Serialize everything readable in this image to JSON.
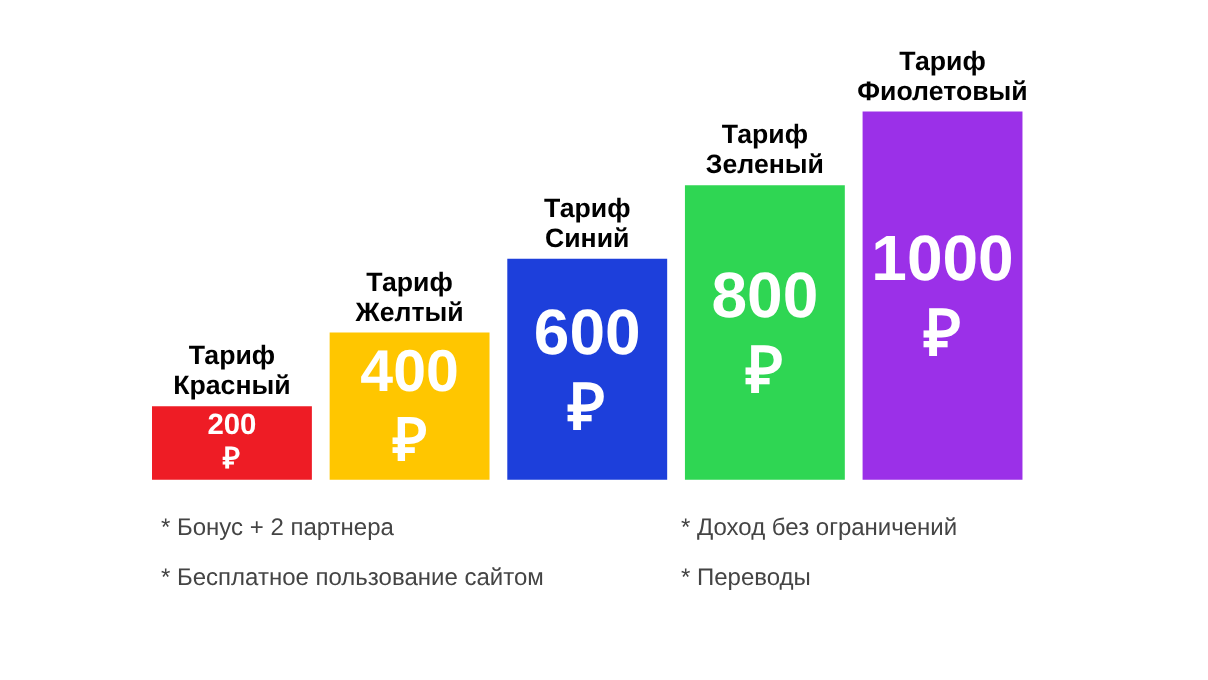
{
  "chart_data": {
    "type": "bar",
    "categories": [
      "Тариф\nКрасный",
      "Тариф\nЖелтый",
      "Тариф\nСиний",
      "Тариф\nЗеленый",
      "Тариф\nФиолетовый"
    ],
    "values": [
      200,
      400,
      600,
      800,
      1000
    ],
    "colors": [
      "#ee1c25",
      "#ffc600",
      "#1d3fdb",
      "#2fd653",
      "#9b30e8"
    ],
    "value_labels": [
      "200\n₽",
      "400\n₽",
      "600\n₽",
      "800\n₽",
      "1000\n₽"
    ],
    "ylim": [
      0,
      1300
    ],
    "tick_labels": false,
    "grid": false,
    "annotations": [
      "* Бонус + 2 партнера",
      "* Бесплатное пользование сайтом",
      "* Доход без ограничений",
      "* Переводы"
    ]
  }
}
